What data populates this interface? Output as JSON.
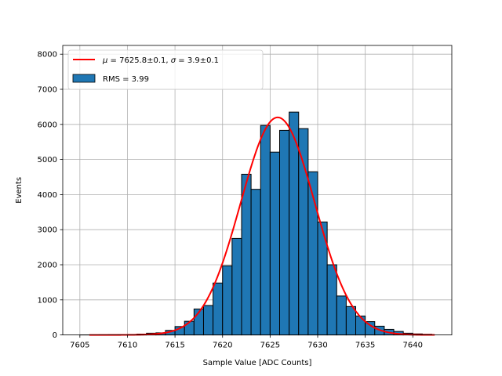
{
  "chart_data": {
    "type": "bar",
    "xlabel": "Sample Value [ADC Counts]",
    "ylabel": "Events",
    "xlim": [
      7603.2,
      7644.1
    ],
    "ylim": [
      0,
      8250
    ],
    "grid": true,
    "legend_position": "top-left",
    "bar_color": "#1f77b4",
    "fit_color": "#ff0000",
    "x_ticks": [
      7605,
      7610,
      7615,
      7620,
      7625,
      7630,
      7635,
      7640
    ],
    "y_ticks": [
      0,
      1000,
      2000,
      3000,
      4000,
      5000,
      6000,
      7000,
      8000
    ],
    "bin_edges": [
      7605,
      7606,
      7607,
      7608,
      7609,
      7610,
      7611,
      7612,
      7613,
      7614,
      7615,
      7616,
      7617,
      7618,
      7619,
      7620,
      7621,
      7622,
      7623,
      7624,
      7625,
      7626,
      7627,
      7628,
      7629,
      7630,
      7631,
      7632,
      7633,
      7634,
      7635,
      7636,
      7637,
      7638,
      7639,
      7640,
      7641,
      7642
    ],
    "counts": [
      2,
      3,
      5,
      8,
      10,
      15,
      25,
      50,
      60,
      130,
      240,
      390,
      740,
      840,
      1480,
      1970,
      2750,
      4580,
      4150,
      5970,
      5210,
      5830,
      6350,
      5880,
      4650,
      3220,
      2000,
      1110,
      810,
      540,
      380,
      250,
      160,
      100,
      50,
      30,
      20
    ],
    "series": [
      {
        "name": "RMS = 3.99",
        "kind": "histogram"
      },
      {
        "name": "μ = 7625.8±0.1, σ = 3.9±0.1",
        "kind": "gaussian_fit",
        "mu": 7625.8,
        "sigma": 3.9,
        "amplitude": 6200,
        "x_range": [
          7606,
          7642.3
        ]
      }
    ],
    "legend": [
      {
        "label_parts": [
          "μ",
          " = 7625.8±0.1, ",
          "σ",
          " = 3.9±0.1"
        ],
        "kind": "line"
      },
      {
        "label": "RMS = 3.99",
        "kind": "patch"
      }
    ]
  }
}
